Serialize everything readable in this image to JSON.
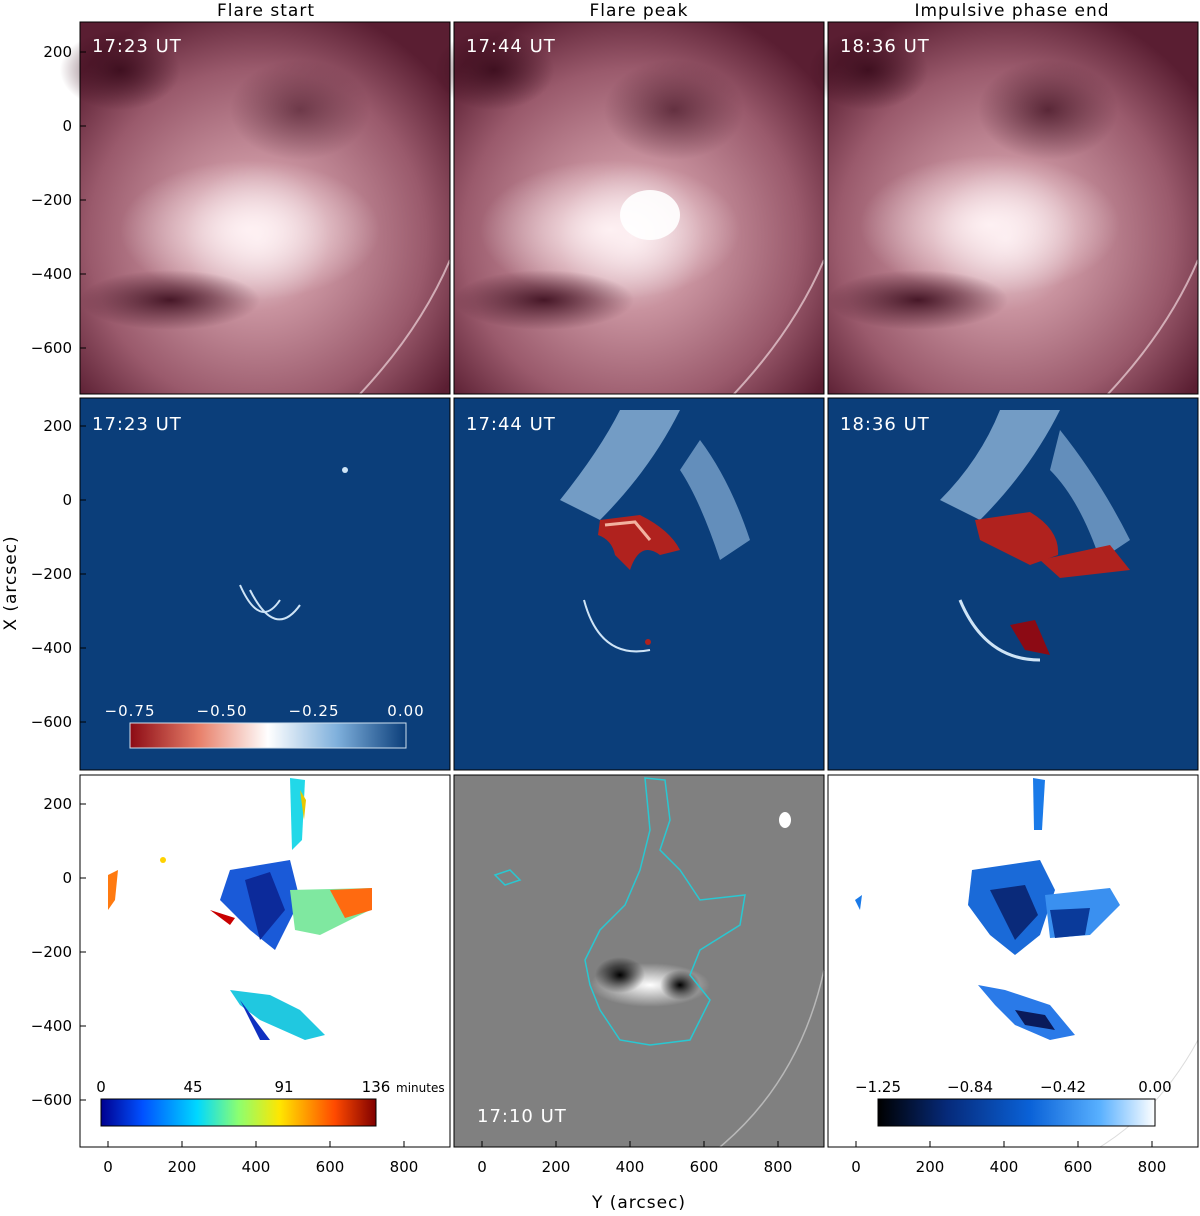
{
  "figure": {
    "columns": [
      {
        "title": "Flare start"
      },
      {
        "title": "Flare peak"
      },
      {
        "title": "Impulsive phase end"
      }
    ],
    "timestamps": {
      "row1": [
        "17:23 UT",
        "17:44 UT",
        "18:36 UT"
      ],
      "row2": [
        "17:23 UT",
        "17:44 UT",
        "18:36 UT"
      ],
      "magnetogram": "17:10 UT"
    },
    "axes": {
      "xlabel": "Y (arcsec)",
      "ylabel": "X (arcsec)",
      "x_ticks": [
        "0",
        "200",
        "400",
        "600",
        "800"
      ],
      "y_ticks": [
        "200",
        "0",
        "−200",
        "−400",
        "−600"
      ]
    },
    "colorbars": {
      "dimming": {
        "ticks": [
          "−0.75",
          "−0.50",
          "−0.25",
          "0.00"
        ],
        "colors": [
          "#8c0a14",
          "#e8806a",
          "#ffffff",
          "#7fb0dc",
          "#0b3e7a"
        ]
      },
      "timing": {
        "ticks": [
          "0",
          "45",
          "91",
          "136"
        ],
        "unit": "minutes",
        "colors": [
          "#00008f",
          "#0050ff",
          "#00d8ff",
          "#8cff70",
          "#ffe600",
          "#ff4a00",
          "#800000"
        ]
      },
      "depth": {
        "ticks": [
          "−1.25",
          "−0.84",
          "−0.42",
          "0.00"
        ],
        "colors": [
          "#000000",
          "#062a7a",
          "#0a62d8",
          "#58b0ff",
          "#ffffff"
        ]
      }
    },
    "palette": {
      "aia_dark": "#4a1426",
      "aia_mid": "#9a5a6c",
      "aia_light": "#f2dce2",
      "dimming_bg": "#0b3e7a",
      "magnetogram_bg": "#808080",
      "contour": "#29c8d2"
    }
  }
}
